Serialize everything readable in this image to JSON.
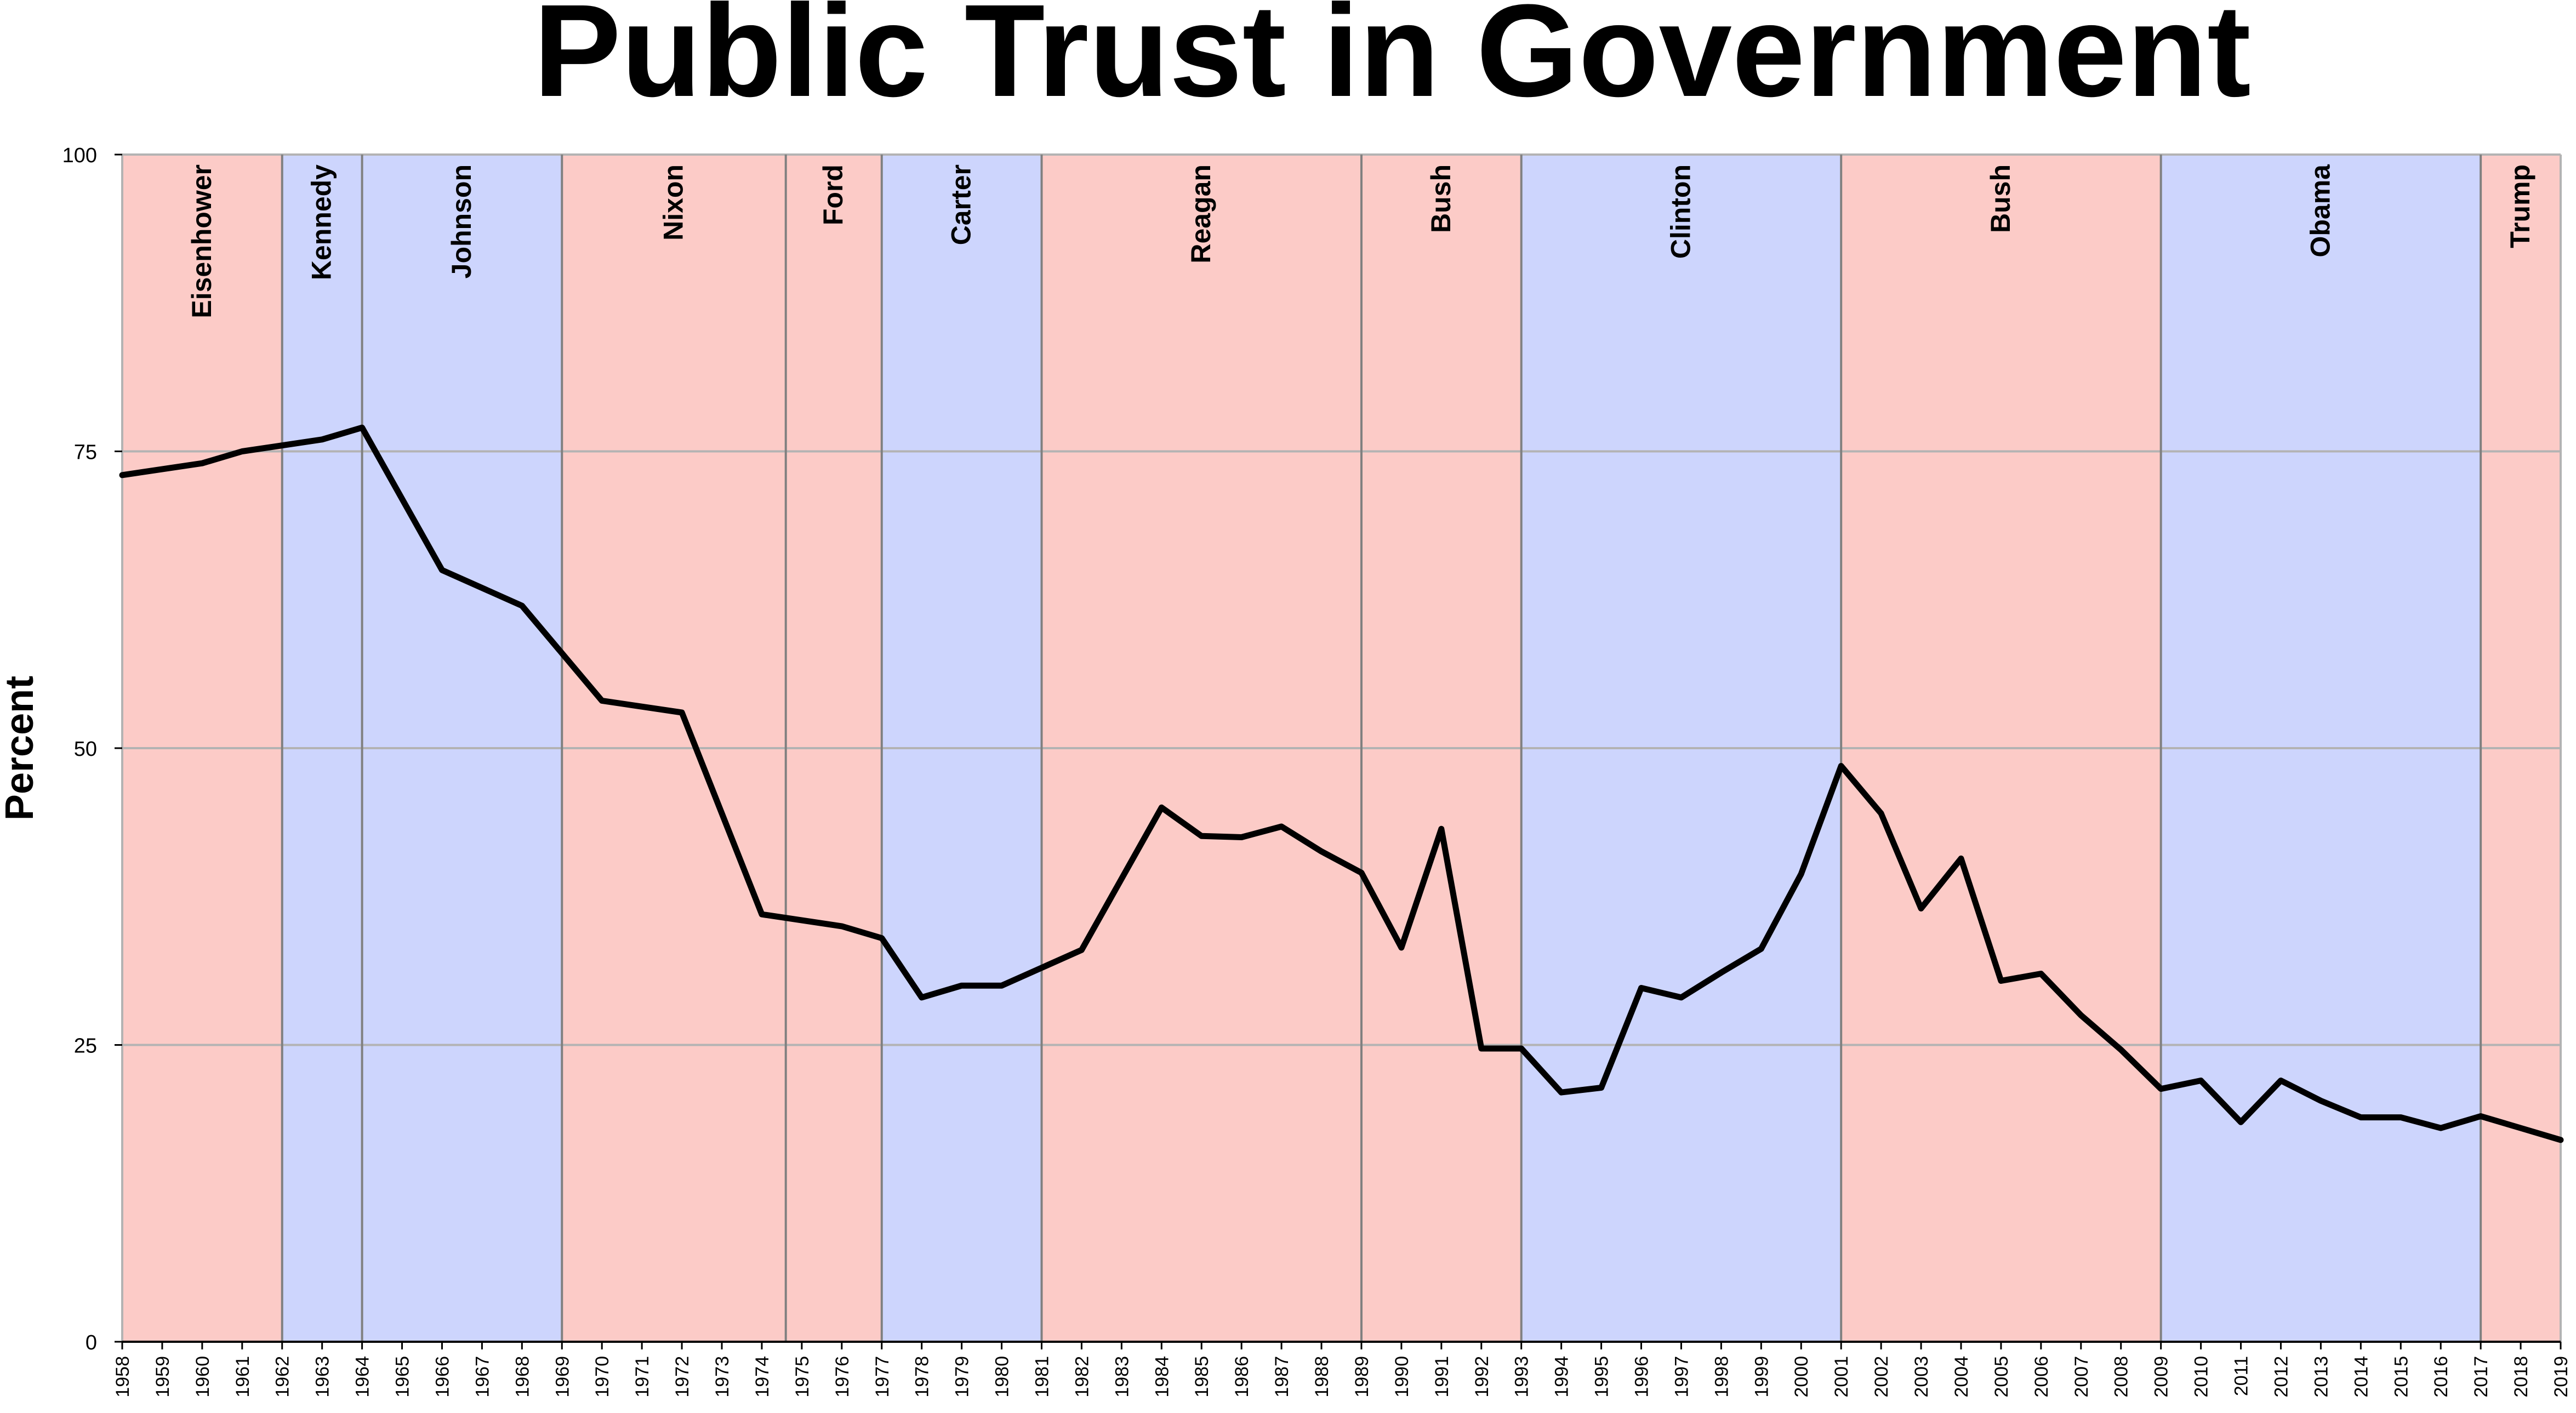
{
  "chart_data": {
    "type": "line",
    "title": "Public Trust in Government",
    "xlabel": "",
    "ylabel": "Percent",
    "ylim": [
      0,
      100
    ],
    "xlim": [
      1958,
      2019
    ],
    "yticks": [
      0,
      25,
      50,
      75,
      100
    ],
    "grid": true,
    "colors": {
      "republican": "#fccbc7",
      "democrat": "#cdd5fd",
      "line": "#000000",
      "grid": "#b3b3b3",
      "divider": "#808080"
    },
    "presidencies": [
      {
        "name": "Eisenhower",
        "start": 1958,
        "end": 1962,
        "party": "republican"
      },
      {
        "name": "Kennedy",
        "start": 1962,
        "end": 1964,
        "party": "democrat"
      },
      {
        "name": "Johnson",
        "start": 1964,
        "end": 1969,
        "party": "democrat"
      },
      {
        "name": "Nixon",
        "start": 1969,
        "end": 1974.6,
        "party": "republican"
      },
      {
        "name": "Ford",
        "start": 1974.6,
        "end": 1977,
        "party": "republican"
      },
      {
        "name": "Carter",
        "start": 1977,
        "end": 1981,
        "party": "democrat"
      },
      {
        "name": "Reagan",
        "start": 1981,
        "end": 1989,
        "party": "republican"
      },
      {
        "name": "Bush",
        "start": 1989,
        "end": 1993,
        "party": "republican"
      },
      {
        "name": "Clinton",
        "start": 1993,
        "end": 2001,
        "party": "democrat"
      },
      {
        "name": "Bush",
        "start": 2001,
        "end": 2009,
        "party": "republican"
      },
      {
        "name": "Obama",
        "start": 2009,
        "end": 2017,
        "party": "democrat"
      },
      {
        "name": "Trump",
        "start": 2017,
        "end": 2019,
        "party": "republican"
      }
    ],
    "series": [
      {
        "points": [
          [
            1958,
            73
          ],
          [
            1960,
            74
          ],
          [
            1961,
            75
          ],
          [
            1963,
            76
          ],
          [
            1964,
            77
          ],
          [
            1966,
            65
          ],
          [
            1968,
            62
          ],
          [
            1970,
            54
          ],
          [
            1972,
            53
          ],
          [
            1974,
            36
          ],
          [
            1976,
            35
          ],
          [
            1977,
            34
          ],
          [
            1978,
            29
          ],
          [
            1979,
            30
          ],
          [
            1980,
            30
          ],
          [
            1982,
            33
          ],
          [
            1984,
            45
          ],
          [
            1985,
            42.6
          ],
          [
            1986,
            42.5
          ],
          [
            1987,
            43.4
          ],
          [
            1988,
            41.3
          ],
          [
            1989,
            39.5
          ],
          [
            1990,
            33.2
          ],
          [
            1991,
            43.2
          ],
          [
            1992,
            24.7
          ],
          [
            1993,
            24.7
          ],
          [
            1994,
            21
          ],
          [
            1995,
            21.4
          ],
          [
            1996,
            29.8
          ],
          [
            1997,
            29
          ],
          [
            1998,
            31.1
          ],
          [
            1999,
            33.1
          ],
          [
            2000,
            39.4
          ],
          [
            2001,
            48.5
          ],
          [
            2002,
            44.5
          ],
          [
            2003,
            36.5
          ],
          [
            2004,
            40.7
          ],
          [
            2005,
            30.4
          ],
          [
            2006,
            31
          ],
          [
            2007,
            27.5
          ],
          [
            2008,
            24.6
          ],
          [
            2009,
            21.3
          ],
          [
            2010,
            22
          ],
          [
            2011,
            18.5
          ],
          [
            2012,
            22
          ],
          [
            2013,
            20.3
          ],
          [
            2014,
            18.9
          ],
          [
            2015,
            18.9
          ],
          [
            2016,
            18
          ],
          [
            2017,
            19
          ],
          [
            2018,
            18
          ],
          [
            2019,
            17
          ]
        ]
      }
    ]
  }
}
